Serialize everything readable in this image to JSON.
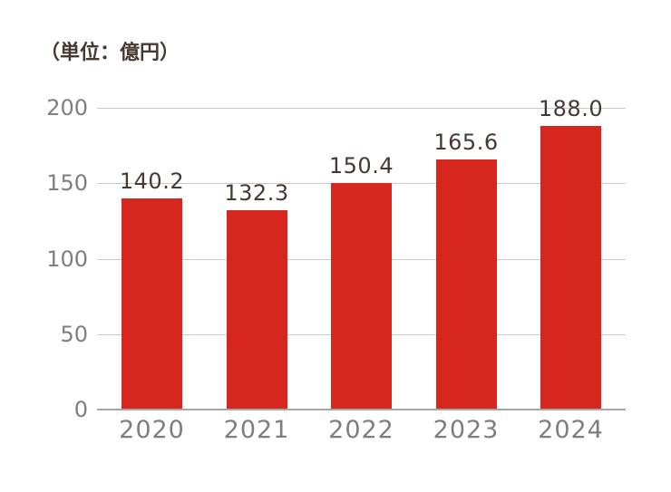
{
  "chart_data": {
    "type": "bar",
    "unit_label": "（単位：億円）",
    "categories": [
      "2020",
      "2021",
      "2022",
      "2023",
      "2024"
    ],
    "values": [
      140.2,
      132.3,
      150.4,
      165.6,
      188.0
    ],
    "value_labels": [
      "140.2",
      "132.3",
      "150.4",
      "165.6",
      "188.0"
    ],
    "yticks": [
      0,
      50,
      100,
      150,
      200
    ],
    "ylim": [
      0,
      200
    ],
    "grid": true,
    "legend": "none",
    "colors": {
      "bar": "#d7261d",
      "data_label": "#473931",
      "unit_label": "#473931",
      "axis_text": "#7e7e7e",
      "gridline": "#c9c9c9",
      "baseline": "#a6a6a6",
      "background": "#ffffff"
    }
  }
}
